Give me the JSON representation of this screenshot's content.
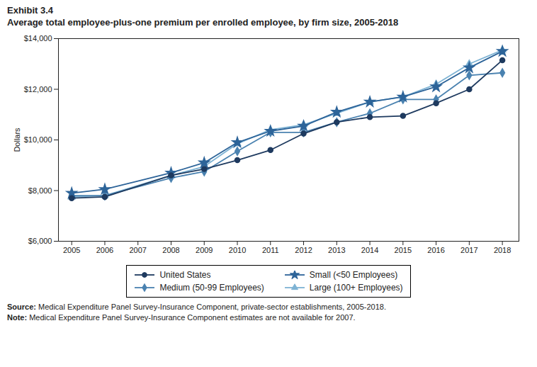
{
  "chart_data": {
    "type": "line",
    "title": "Exhibit 3.4",
    "subtitle": "Average total employee-plus-one premium per enrolled employee, by firm size, 2005-2018",
    "ylabel": "Dollars",
    "x": [
      2005,
      2006,
      2008,
      2009,
      2010,
      2011,
      2012,
      2013,
      2014,
      2015,
      2016,
      2017,
      2018
    ],
    "xlim": [
      2004.6,
      2018.5
    ],
    "xticks": [
      2005,
      2006,
      2007,
      2008,
      2009,
      2010,
      2011,
      2012,
      2013,
      2014,
      2015,
      2016,
      2017,
      2018
    ],
    "ylim": [
      6000,
      14000
    ],
    "yticks": [
      {
        "value": 6000,
        "label": "$6,000"
      },
      {
        "value": 8000,
        "label": "$8,000"
      },
      {
        "value": 10000,
        "label": "$10,000"
      },
      {
        "value": 12000,
        "label": "$12,000"
      },
      {
        "value": 14000,
        "label": "$14,000"
      }
    ],
    "grid": false,
    "legend": "bottom",
    "series": [
      {
        "name": "United States",
        "color": "#1e3a5f",
        "marker": "circle",
        "values": [
          7700,
          7750,
          8600,
          8850,
          9200,
          9600,
          10250,
          10700,
          10900,
          10950,
          11450,
          12000,
          13150
        ]
      },
      {
        "name": "Small (<50 Employees)",
        "color": "#2d6499",
        "marker": "star",
        "values": [
          7900,
          8050,
          8700,
          9100,
          9900,
          10350,
          10550,
          11100,
          11500,
          11700,
          12100,
          12850,
          13500
        ]
      },
      {
        "name": "Medium (50-99 Employees)",
        "color": "#4a82b0",
        "marker": "diamond",
        "values": [
          7800,
          7800,
          8500,
          8750,
          9550,
          10300,
          10300,
          10700,
          11050,
          11600,
          11600,
          12550,
          12650
        ]
      },
      {
        "name": "Large (100+ Employees)",
        "color": "#7eb3d4",
        "marker": "triangle",
        "values": [
          7750,
          7800,
          8600,
          8950,
          9850,
          10400,
          10600,
          11050,
          11500,
          11700,
          12200,
          13000,
          13550
        ]
      }
    ],
    "annotations": [
      "Source: Medical Expenditure Panel Survey-Insurance Component, private-sector establishments, 2005-2018.",
      "Note: Medical Expenditure Panel Survey-Insurance Component estimates are not available for 2007."
    ]
  }
}
